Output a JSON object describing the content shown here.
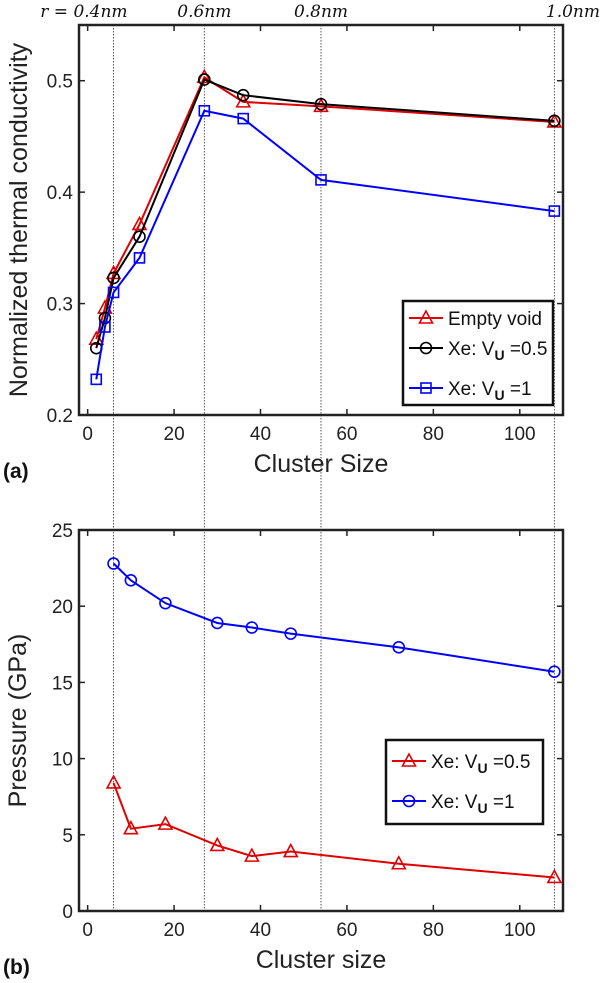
{
  "chart_data": [
    {
      "type": "line",
      "panel_label": "(a)",
      "xlabel": "Cluster Size",
      "ylabel": "Normalized thermal conductivity",
      "xlim": [
        -2,
        110
      ],
      "ylim": [
        0.2,
        0.55
      ],
      "xticks": [
        0,
        20,
        40,
        60,
        80,
        100
      ],
      "yticks": [
        0.2,
        0.3,
        0.4,
        0.5
      ],
      "grid": false,
      "legend_position": "bottom-right",
      "reference_lines": [
        {
          "x": 6,
          "label": "r = 0.4nm"
        },
        {
          "x": 27,
          "label": "0.6nm"
        },
        {
          "x": 54,
          "label": "0.8nm"
        },
        {
          "x": 108,
          "label": "1.0nm"
        }
      ],
      "x": [
        2,
        4,
        6,
        12,
        27,
        36,
        54,
        108
      ],
      "series": [
        {
          "name": "Empty void",
          "color": "#e00000",
          "marker": "triangle",
          "values": [
            0.268,
            0.296,
            0.327,
            0.371,
            0.503,
            0.481,
            0.477,
            0.463
          ]
        },
        {
          "name": "Xe: V_U =0.5",
          "color": "#000000",
          "marker": "circle",
          "values": [
            0.26,
            0.287,
            0.323,
            0.36,
            0.501,
            0.487,
            0.479,
            0.464
          ]
        },
        {
          "name": "Xe: V_U =1",
          "color": "#0000ff",
          "marker": "square",
          "values": [
            0.232,
            0.279,
            0.31,
            0.341,
            0.473,
            0.466,
            0.411,
            0.383
          ]
        }
      ]
    },
    {
      "type": "line",
      "panel_label": "(b)",
      "xlabel": "Cluster size",
      "ylabel": "Pressure (GPa)",
      "xlim": [
        -2,
        110
      ],
      "ylim": [
        0,
        25
      ],
      "xticks": [
        0,
        20,
        40,
        60,
        80,
        100
      ],
      "yticks": [
        0,
        5,
        10,
        15,
        20,
        25
      ],
      "grid": false,
      "legend_position": "center-right",
      "x": [
        6,
        10,
        18,
        30,
        38,
        47,
        72,
        108
      ],
      "series": [
        {
          "name": "Xe: V_U =0.5",
          "color": "#e00000",
          "marker": "triangle",
          "values": [
            8.4,
            5.4,
            5.7,
            4.3,
            3.6,
            3.9,
            3.1,
            2.2
          ]
        },
        {
          "name": "Xe: V_U =1",
          "color": "#0000ff",
          "marker": "circle",
          "values": [
            22.8,
            21.7,
            20.2,
            18.9,
            18.6,
            18.2,
            17.3,
            15.7
          ]
        }
      ]
    }
  ]
}
